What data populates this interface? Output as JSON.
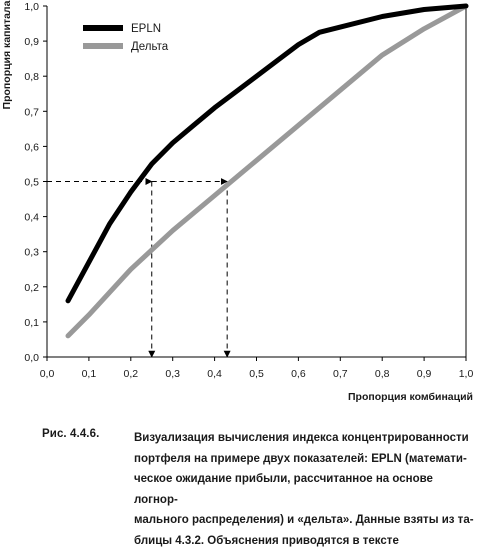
{
  "chart_data": {
    "type": "line",
    "xlabel": "Пропорция комбинаций",
    "ylabel": "Пропорция капитала",
    "xlim": [
      0,
      1
    ],
    "ylim": [
      0,
      1
    ],
    "x_ticks": [
      "0,0",
      "0,1",
      "0,2",
      "0,3",
      "0,4",
      "0,5",
      "0,6",
      "0,7",
      "0,8",
      "0,9",
      "1,0"
    ],
    "y_ticks": [
      "0,0",
      "0,1",
      "0,2",
      "0,3",
      "0,4",
      "0,5",
      "0,6",
      "0,7",
      "0,8",
      "0,9",
      "1,0"
    ],
    "grid": false,
    "legend_position": "top-left",
    "series": [
      {
        "name": "EPLN",
        "color": "#000000",
        "x": [
          0.05,
          0.1,
          0.15,
          0.2,
          0.25,
          0.3,
          0.35,
          0.4,
          0.45,
          0.5,
          0.55,
          0.6,
          0.65,
          0.7,
          0.8,
          0.9,
          1.0
        ],
        "y": [
          0.16,
          0.27,
          0.38,
          0.47,
          0.55,
          0.61,
          0.66,
          0.71,
          0.755,
          0.8,
          0.845,
          0.89,
          0.925,
          0.94,
          0.97,
          0.99,
          1.0
        ]
      },
      {
        "name": "Дельта",
        "color": "#999999",
        "x": [
          0.05,
          0.1,
          0.2,
          0.3,
          0.4,
          0.5,
          0.6,
          0.7,
          0.8,
          0.9,
          1.0
        ],
        "y": [
          0.06,
          0.12,
          0.25,
          0.36,
          0.46,
          0.56,
          0.66,
          0.76,
          0.86,
          0.935,
          1.0
        ]
      }
    ],
    "annotations": [
      {
        "type": "dashed-arrow",
        "level": 0.5,
        "x_from": 0.0,
        "x_to": 0.25,
        "drop_to_axis": true
      },
      {
        "type": "dashed-arrow",
        "level": 0.5,
        "x_from": 0.25,
        "x_to": 0.43,
        "drop_to_axis": true
      }
    ]
  },
  "caption": {
    "label": "Рис. 4.4.6.",
    "lines": [
      "Визуализация вычисления индекса концентрированности",
      "портфеля на примере двух показателей: EPLN (математи-",
      "ческое ожидание прибыли, рассчитанное на основе логнор-",
      "мального распределения) и «дельта». Данные взяты из та-",
      "блицы 4.3.2. Объяснения приводятся в тексте"
    ]
  }
}
